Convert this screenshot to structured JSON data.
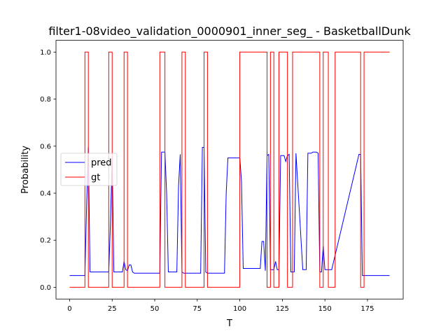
{
  "chart_data": {
    "type": "line",
    "title": "filter1-08video_validation_0000901_inner_seg_ - BasketballDunk",
    "xlabel": "T",
    "ylabel": "Probability",
    "xlim": [
      -8,
      196
    ],
    "ylim": [
      -0.05,
      1.05
    ],
    "xticks": [
      0,
      25,
      50,
      75,
      100,
      125,
      150,
      175
    ],
    "yticks": [
      0.0,
      0.2,
      0.4,
      0.6,
      0.8,
      1.0
    ],
    "xtick_labels": [
      "0",
      "25",
      "50",
      "75",
      "100",
      "125",
      "150",
      "175"
    ],
    "ytick_labels": [
      "0.0",
      "0.2",
      "0.4",
      "0.6",
      "0.8",
      "1.0"
    ],
    "legend": {
      "position": "center-left",
      "entries": [
        "pred",
        "gt"
      ]
    },
    "series": [
      {
        "name": "pred",
        "color": "#0000ff",
        "x": [
          0,
          9,
          10,
          11,
          12,
          23,
          24,
          25,
          26,
          31,
          32,
          33,
          34,
          35,
          36,
          37,
          38,
          53,
          54,
          55,
          56,
          57,
          58,
          63,
          64,
          65,
          66,
          67,
          68,
          77,
          78,
          79,
          80,
          81,
          82,
          91,
          92,
          93,
          94,
          99,
          100,
          101,
          102,
          112,
          113,
          114,
          115,
          116,
          117,
          118,
          120,
          121,
          122,
          123,
          124,
          126,
          127,
          128,
          129,
          130,
          131,
          132,
          133,
          137,
          138,
          139,
          140,
          142,
          143,
          144,
          145,
          146,
          147,
          148,
          149,
          150,
          151,
          152,
          153,
          154,
          170,
          171,
          172,
          173,
          174,
          188
        ],
        "y": [
          0.05,
          0.05,
          0.35,
          0.595,
          0.065,
          0.065,
          0.275,
          0.55,
          0.065,
          0.065,
          0.11,
          0.075,
          0.07,
          0.095,
          0.095,
          0.065,
          0.06,
          0.06,
          0.575,
          0.575,
          0.575,
          0.4,
          0.065,
          0.065,
          0.43,
          0.565,
          0.065,
          0.06,
          0.06,
          0.06,
          0.595,
          0.595,
          0.065,
          0.06,
          0.06,
          0.06,
          0.4,
          0.55,
          0.55,
          0.55,
          0.55,
          0.45,
          0.08,
          0.08,
          0.195,
          0.195,
          0.07,
          0.56,
          0.565,
          0.075,
          0.075,
          0.11,
          0.075,
          0.075,
          0.56,
          0.56,
          0.535,
          0.56,
          0.565,
          0.065,
          0.065,
          0.065,
          0.57,
          0.075,
          0.075,
          0.075,
          0.57,
          0.57,
          0.575,
          0.575,
          0.575,
          0.57,
          0.065,
          0.065,
          0.175,
          0.075,
          0.075,
          0.075,
          0.075,
          0.075,
          0.565,
          0.565,
          0.05,
          0.05,
          0.05,
          0.05
        ]
      },
      {
        "name": "gt",
        "color": "#ff0000",
        "x": [
          0,
          9,
          9,
          11,
          11,
          23,
          23,
          25,
          25,
          32,
          32,
          34,
          34,
          53,
          53,
          56,
          56,
          66,
          66,
          68,
          68,
          79,
          79,
          81,
          81,
          100,
          100,
          116,
          116,
          118,
          118,
          120,
          120,
          123,
          123,
          128,
          128,
          131,
          131,
          147,
          147,
          149,
          149,
          152,
          152,
          156,
          156,
          171,
          171,
          173,
          173,
          188
        ],
        "y": [
          0,
          0,
          1,
          1,
          0,
          0,
          1,
          1,
          0,
          0,
          1,
          1,
          0,
          0,
          1,
          1,
          0,
          0,
          1,
          1,
          0,
          0,
          1,
          1,
          0,
          0,
          1,
          1,
          0,
          0,
          1,
          1,
          0,
          0,
          1,
          1,
          0,
          0,
          1,
          1,
          0,
          0,
          1,
          1,
          0,
          0,
          1,
          1,
          0,
          0,
          1,
          1
        ]
      }
    ]
  }
}
